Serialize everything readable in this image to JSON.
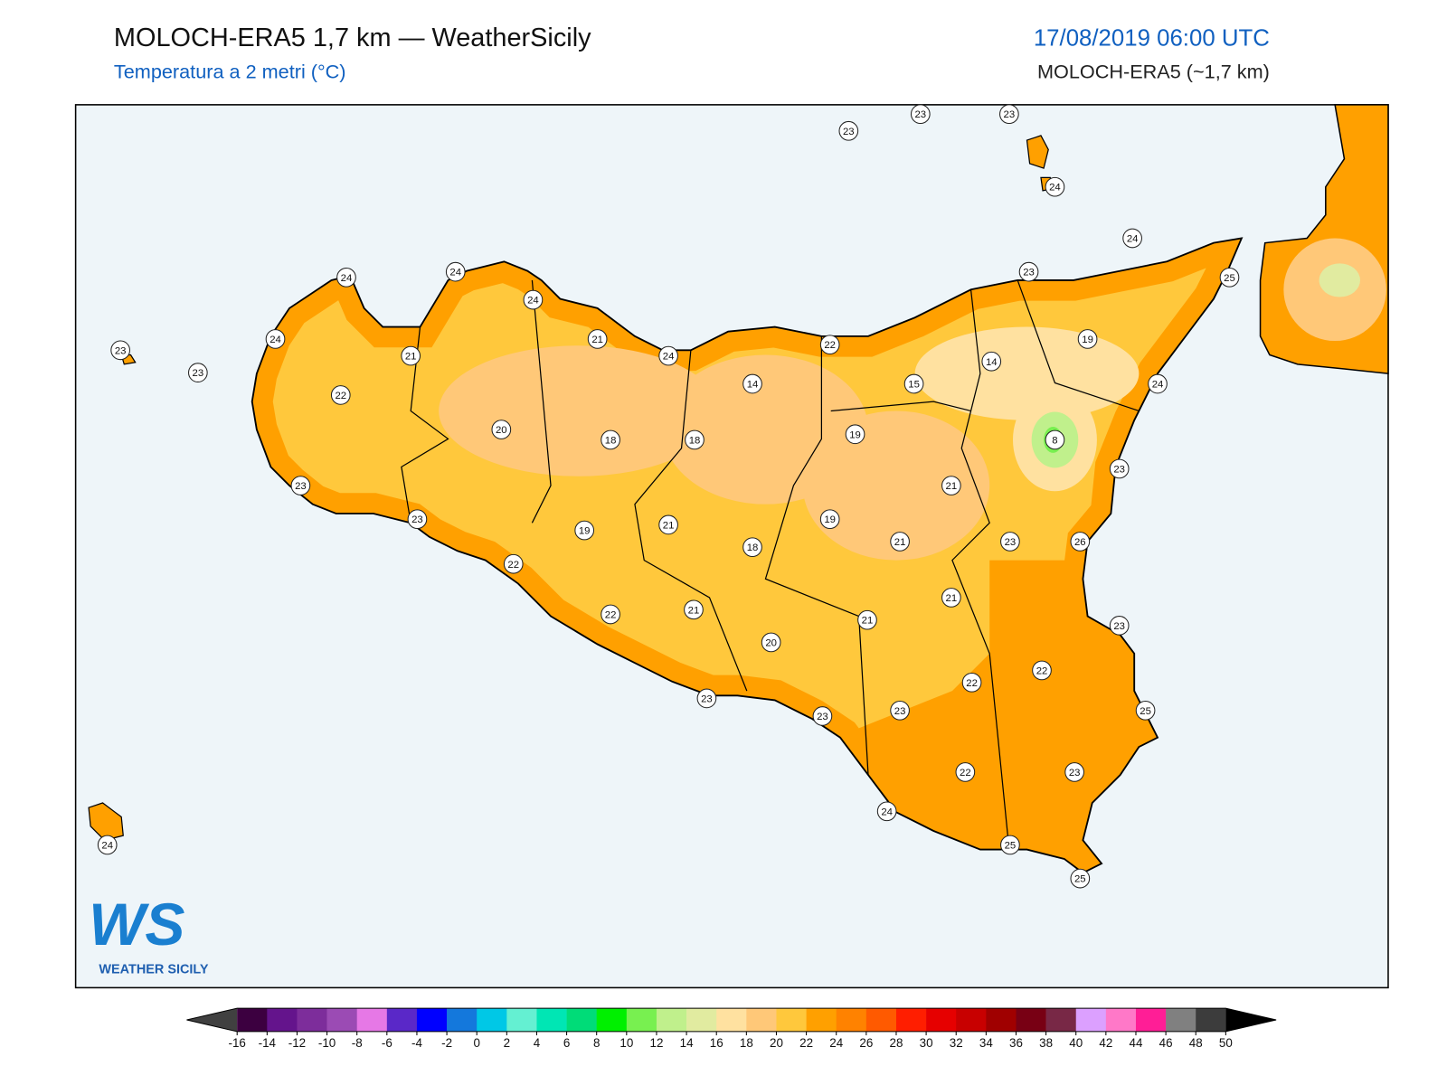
{
  "header": {
    "title": "MOLOCH-ERA5 1,7 km — WeatherSicily",
    "subtitle": "Temperatura a 2 metri (°C)",
    "datetime": "17/08/2019 06:00 UTC",
    "model": "MOLOCH-ERA5 (~1,7 km)"
  },
  "map": {
    "stations": [
      23,
      23,
      23,
      24,
      24,
      23,
      25,
      24,
      24,
      24,
      24,
      21,
      21,
      24,
      22,
      19,
      14,
      15,
      24,
      23,
      23,
      22,
      14,
      20,
      18,
      18,
      19,
      8,
      23,
      23,
      21,
      23,
      21,
      19,
      19,
      18,
      21,
      23,
      26,
      22,
      21,
      21,
      22,
      21,
      23,
      20,
      22,
      22,
      23,
      23,
      23,
      25,
      22,
      23,
      24,
      25,
      25,
      24
    ]
  },
  "logo": {
    "mark": "WS",
    "name": "WEATHER SICILY"
  },
  "colorbar": {
    "ticks": [
      -16,
      -14,
      -12,
      -10,
      -8,
      -6,
      -4,
      -2,
      0,
      2,
      4,
      6,
      8,
      10,
      12,
      14,
      16,
      18,
      20,
      22,
      24,
      26,
      28,
      30,
      32,
      34,
      36,
      38,
      40,
      42,
      44,
      46,
      48,
      50
    ],
    "colors": [
      "#3c0040",
      "#64148c",
      "#7d2d9b",
      "#9b4bb4",
      "#e678e6",
      "#5a28c8",
      "#0000ff",
      "#1478dc",
      "#00c8e6",
      "#64f0d2",
      "#00e6b4",
      "#00dc78",
      "#00f000",
      "#78f050",
      "#c0f08c",
      "#e1eba0",
      "#ffe1a0",
      "#ffc878",
      "#ffc83c",
      "#ffa000",
      "#ff8200",
      "#ff5a00",
      "#ff1e00",
      "#e60000",
      "#c80000",
      "#a00000",
      "#780014",
      "#782846",
      "#dca0ff",
      "#ff78c8",
      "#ff1e96",
      "#808080",
      "#3c3c3c"
    ],
    "under_color": "#404040",
    "over_color": "#000000"
  }
}
